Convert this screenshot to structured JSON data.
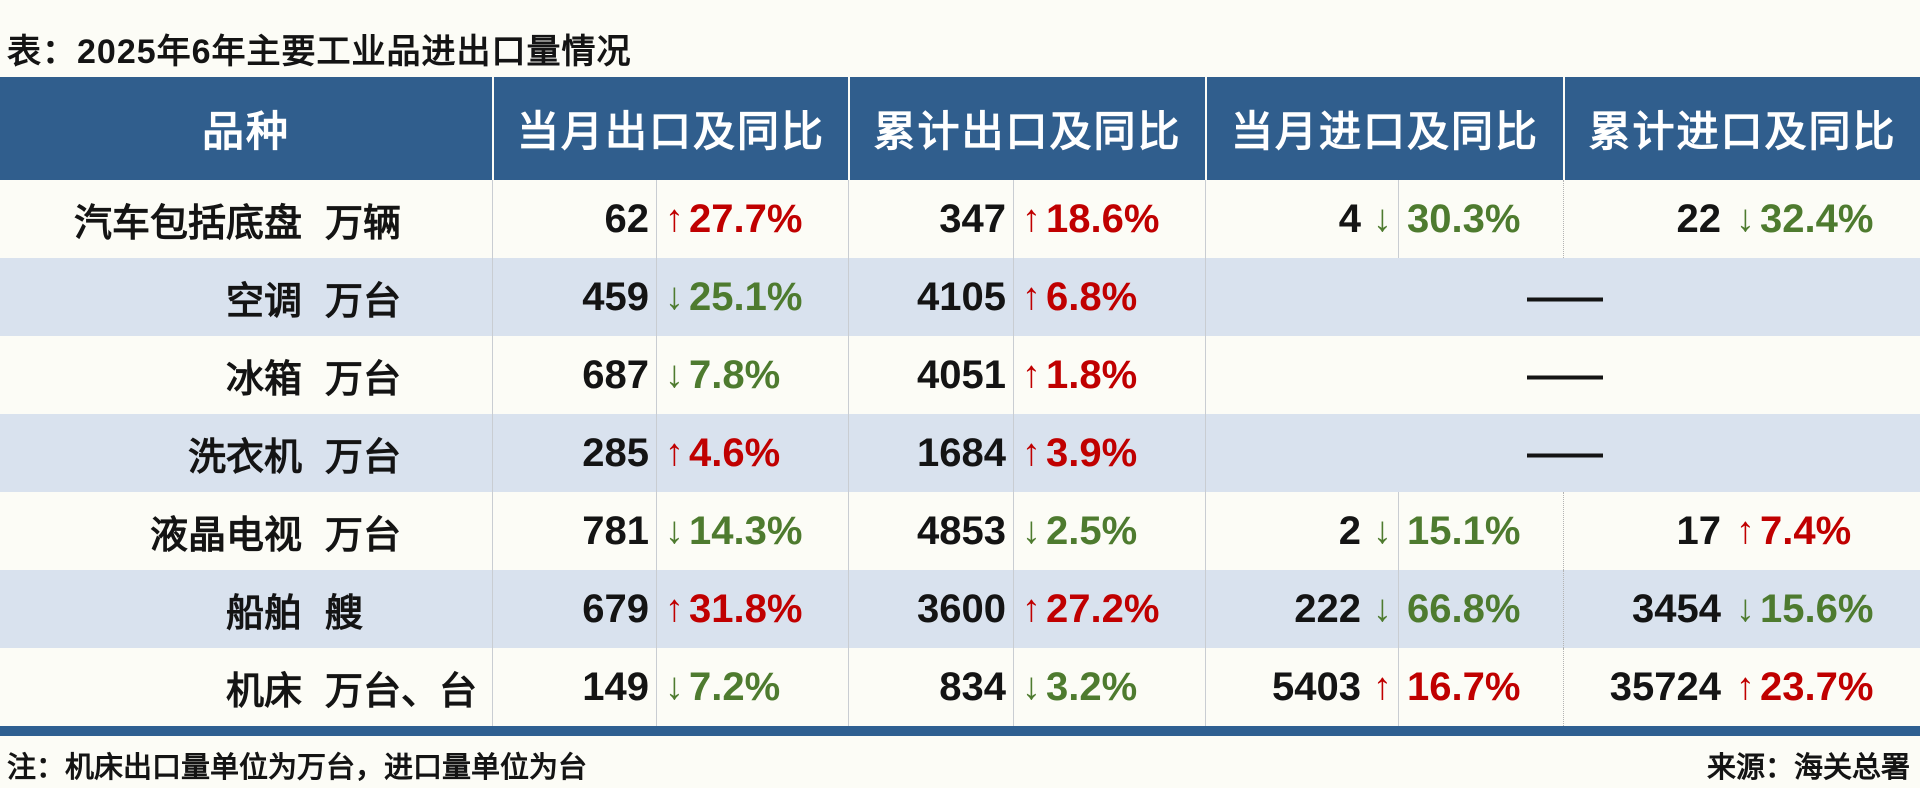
{
  "title": "表：2025年6年主要工业品进出口量情况",
  "icons": {
    "up_arrow": "↑",
    "down_arrow": "↓"
  },
  "colors": {
    "header_bg": "#305E8D",
    "header_text": "#FFFFFF",
    "row_alt_bg": "#D9E2EE",
    "page_bg": "#FCFCF6",
    "up_red": "#C00000",
    "down_green": "#4E7B2F",
    "divider_gray": "#C9CDD2",
    "bottom_rule_blue": "#2E5F91"
  },
  "footer": {
    "note": "注：机床出口量单位为万台，进口量单位为台",
    "source": "来源：海关总署"
  },
  "chart_data": {
    "type": "table",
    "title": "表：2025年6年主要工业品进出口量情况",
    "columns": [
      "品种",
      "当月出口及同比",
      "累计出口及同比",
      "当月进口及同比",
      "累计进口及同比"
    ],
    "no_data_text": "——",
    "rows": [
      {
        "name": "汽车包括底盘",
        "unit": "万辆",
        "cells": [
          {
            "value": "62",
            "trend": "up",
            "pct": "27.7%"
          },
          {
            "value": "347",
            "trend": "up",
            "pct": "18.6%"
          },
          {
            "value": "4",
            "trend": "down",
            "pct": "30.3%"
          },
          {
            "value": "22",
            "trend": "down",
            "pct": "32.4%"
          }
        ]
      },
      {
        "name": "空调",
        "unit": "万台",
        "cells": [
          {
            "value": "459",
            "trend": "down",
            "pct": "25.1%"
          },
          {
            "value": "4105",
            "trend": "up",
            "pct": "6.8%"
          }
        ]
      },
      {
        "name": "冰箱",
        "unit": "万台",
        "cells": [
          {
            "value": "687",
            "trend": "down",
            "pct": "7.8%"
          },
          {
            "value": "4051",
            "trend": "up",
            "pct": "1.8%"
          }
        ]
      },
      {
        "name": "洗衣机",
        "unit": "万台",
        "cells": [
          {
            "value": "285",
            "trend": "up",
            "pct": "4.6%"
          },
          {
            "value": "1684",
            "trend": "up",
            "pct": "3.9%"
          }
        ]
      },
      {
        "name": "液晶电视",
        "unit": "万台",
        "cells": [
          {
            "value": "781",
            "trend": "down",
            "pct": "14.3%"
          },
          {
            "value": "4853",
            "trend": "down",
            "pct": "2.5%"
          },
          {
            "value": "2",
            "trend": "down",
            "pct": "15.1%"
          },
          {
            "value": "17",
            "trend": "up",
            "pct": "7.4%"
          }
        ]
      },
      {
        "name": "船舶",
        "unit": "艘",
        "cells": [
          {
            "value": "679",
            "trend": "up",
            "pct": "31.8%"
          },
          {
            "value": "3600",
            "trend": "up",
            "pct": "27.2%"
          },
          {
            "value": "222",
            "trend": "down",
            "pct": "66.8%"
          },
          {
            "value": "3454",
            "trend": "down",
            "pct": "15.6%"
          }
        ]
      },
      {
        "name": "机床",
        "unit": "万台、台",
        "cells": [
          {
            "value": "149",
            "trend": "down",
            "pct": "7.2%"
          },
          {
            "value": "834",
            "trend": "down",
            "pct": "3.2%"
          },
          {
            "value": "5403",
            "trend": "up",
            "pct": "16.7%"
          },
          {
            "value": "35724",
            "trend": "up",
            "pct": "23.7%"
          }
        ]
      }
    ]
  }
}
